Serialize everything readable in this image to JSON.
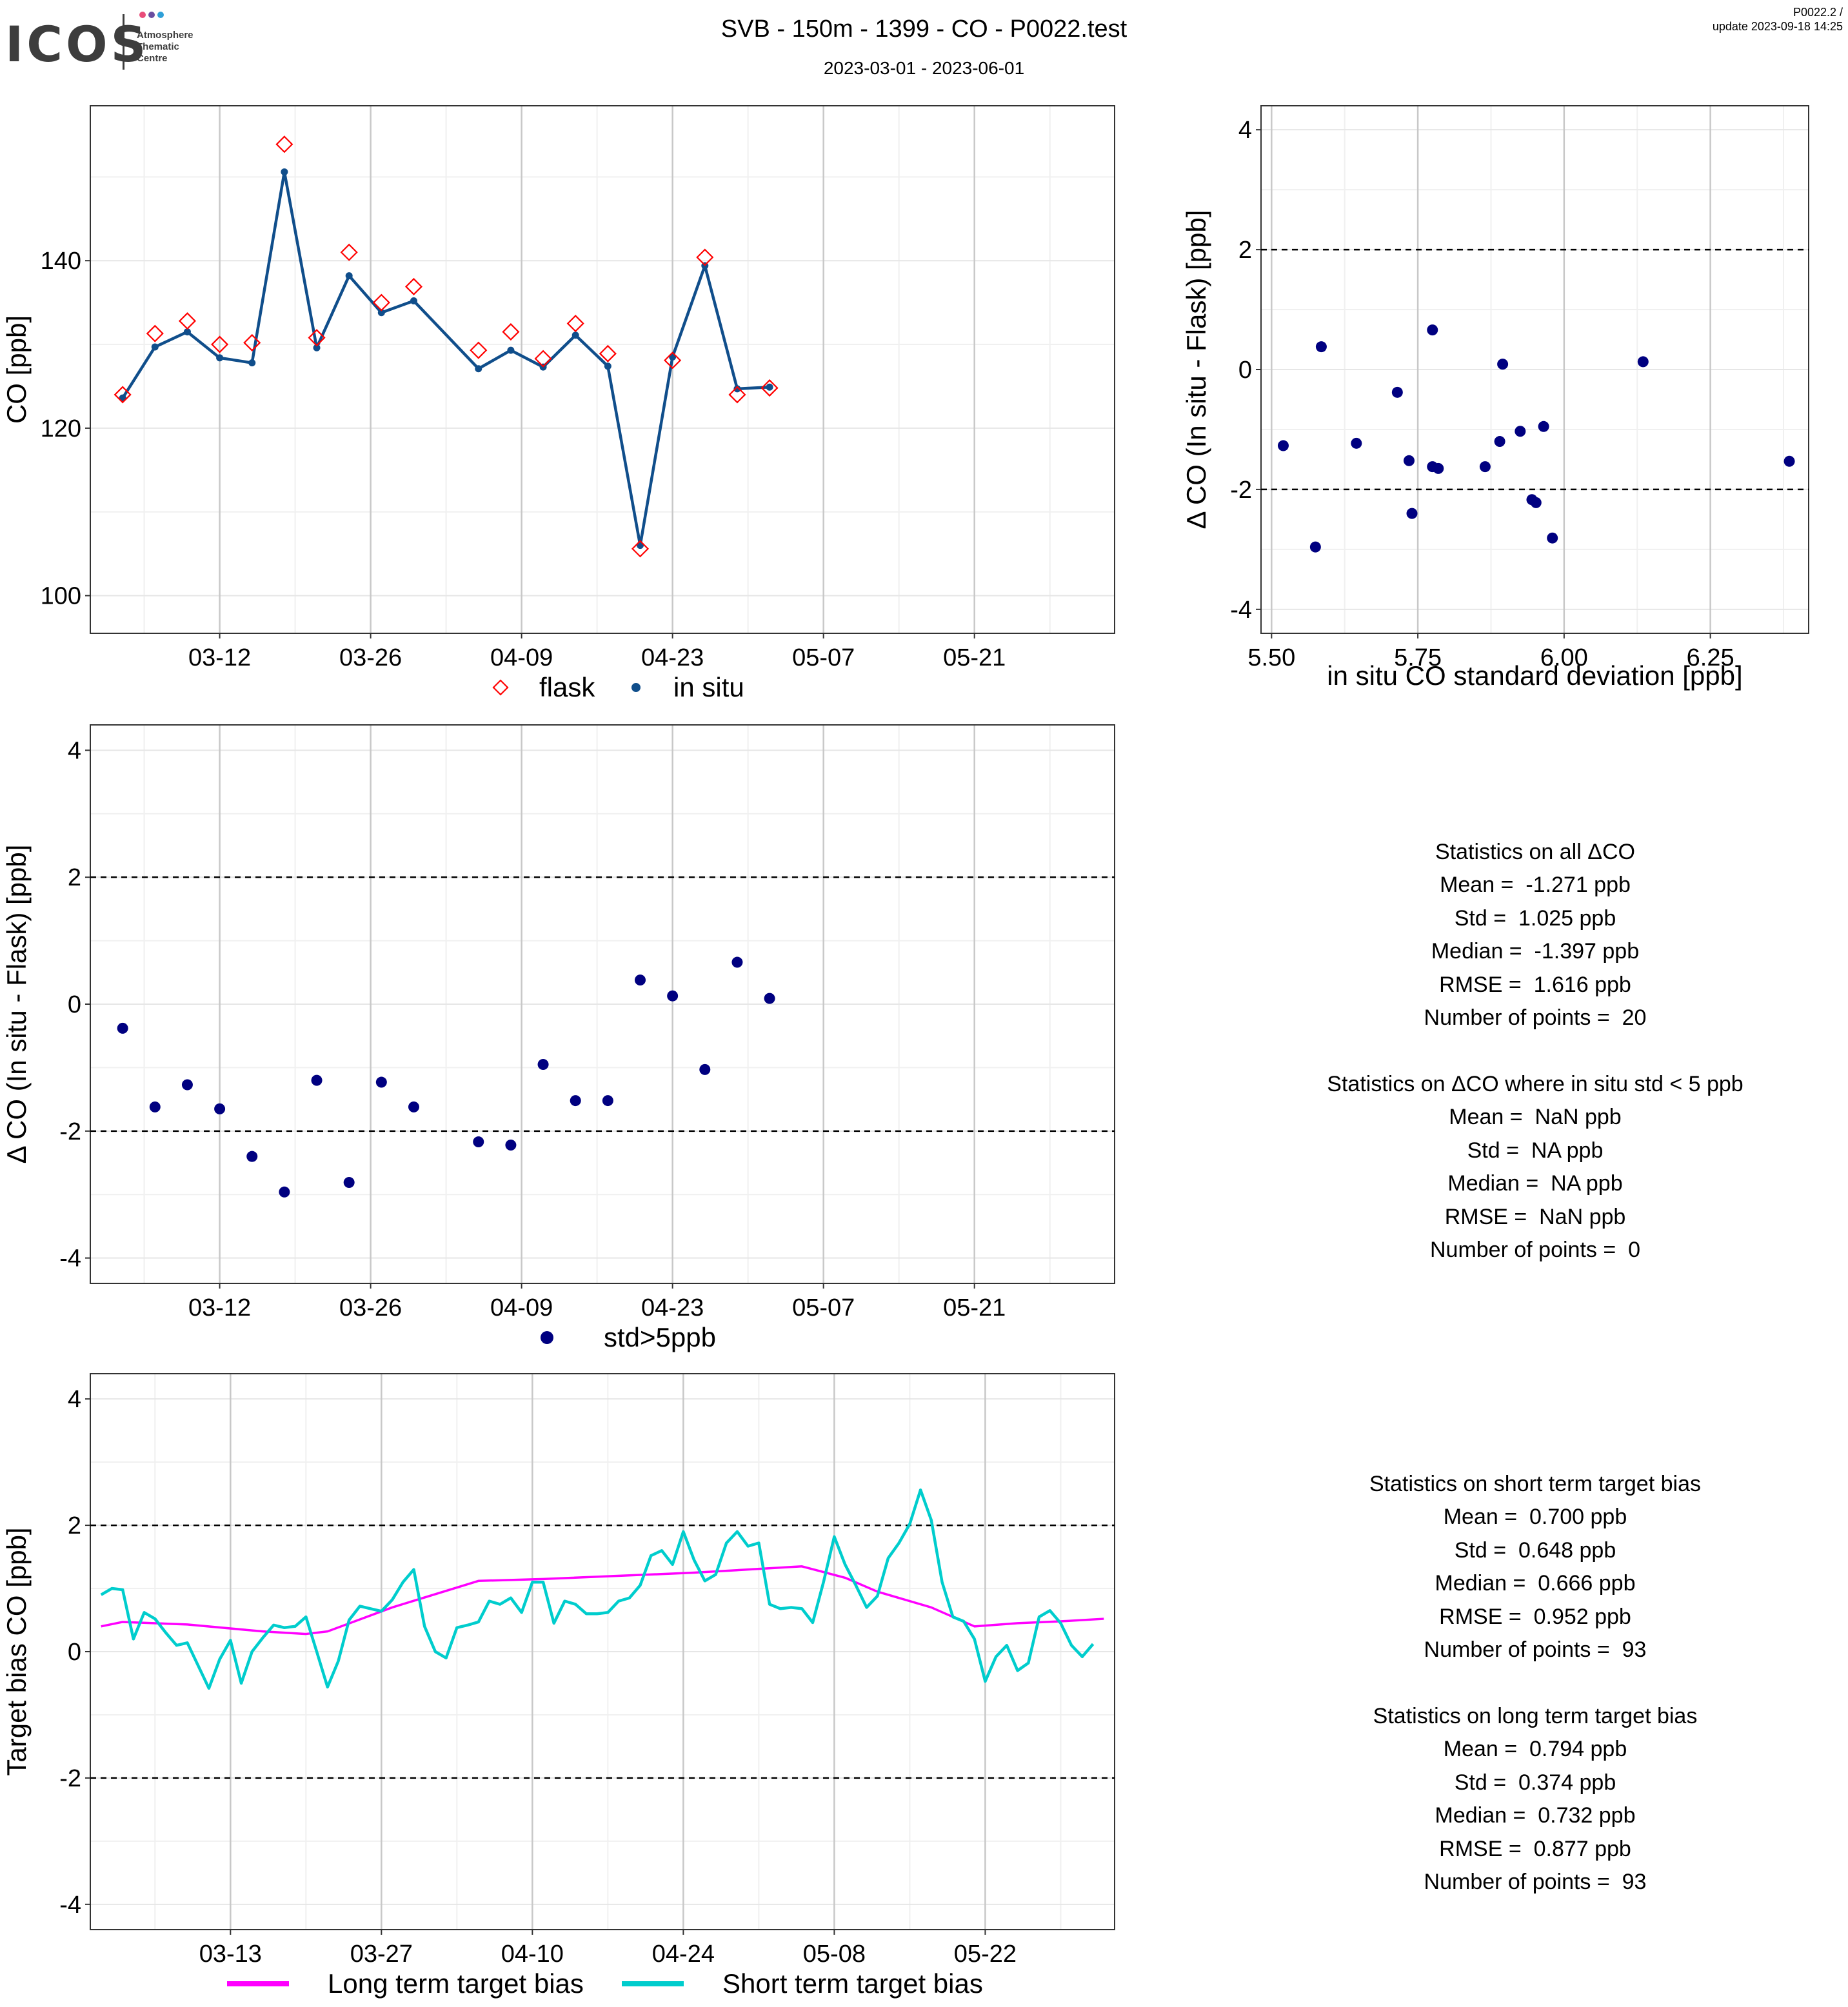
{
  "header": {
    "title": "SVB - 150m - 1399 - CO - P0022.test",
    "subtitle": "2023-03-01 - 2023-06-01",
    "version": "P0022.2 /",
    "update": "update  2023-09-18 14:25"
  },
  "logo": {
    "word": "ICOS",
    "sub": [
      "Atmosphere",
      "Thematic",
      "Centre"
    ],
    "dot_colors": [
      "#e94c7a",
      "#6a4ea0",
      "#2fa0d8"
    ]
  },
  "colors": {
    "flask": "#ff0000",
    "in_situ": "#104e8b",
    "delta": "#000080",
    "long_term": "#ff00ff",
    "short_term": "#00cdcd"
  },
  "chart_data": [
    {
      "id": "co-timeseries",
      "type": "line",
      "ylabel": "CO [ppb]",
      "ylim": [
        95.5,
        158.5
      ],
      "yticks": [
        100,
        120,
        140
      ],
      "xlim": [
        "2023-02-28",
        "2023-06-03"
      ],
      "xticks": [
        "03-12",
        "03-26",
        "04-09",
        "04-23",
        "05-07",
        "05-21"
      ],
      "xtick_dates": [
        "2023-03-12",
        "2023-03-26",
        "2023-04-09",
        "2023-04-23",
        "2023-05-07",
        "2023-05-21"
      ],
      "grid": true,
      "legend": "bottom",
      "series": [
        {
          "name": "flask",
          "marker": "diamond",
          "x": [
            "2023-03-03",
            "2023-03-06",
            "2023-03-09",
            "2023-03-12",
            "2023-03-15",
            "2023-03-18",
            "2023-03-21",
            "2023-03-24",
            "2023-03-27",
            "2023-03-30",
            "2023-04-05",
            "2023-04-08",
            "2023-04-11",
            "2023-04-14",
            "2023-04-17",
            "2023-04-20",
            "2023-04-23",
            "2023-04-26",
            "2023-04-29",
            "2023-05-02"
          ],
          "values": [
            124,
            131.3,
            132.8,
            130,
            130.2,
            153.9,
            130.8,
            141,
            135,
            136.9,
            129.3,
            131.5,
            128.3,
            132.5,
            128.9,
            105.6,
            128.1,
            140.4,
            124,
            124.8
          ]
        },
        {
          "name": "in situ",
          "marker": "point",
          "x": [
            "2023-03-03",
            "2023-03-06",
            "2023-03-09",
            "2023-03-12",
            "2023-03-15",
            "2023-03-18",
            "2023-03-21",
            "2023-03-24",
            "2023-03-27",
            "2023-03-30",
            "2023-04-05",
            "2023-04-08",
            "2023-04-11",
            "2023-04-14",
            "2023-04-17",
            "2023-04-20",
            "2023-04-23",
            "2023-04-26",
            "2023-04-29",
            "2023-05-02"
          ],
          "values": [
            123.6,
            129.7,
            131.5,
            128.4,
            127.8,
            150.6,
            129.6,
            138.2,
            133.8,
            135.2,
            127.1,
            129.3,
            127.3,
            131.1,
            127.4,
            106,
            128.5,
            139.4,
            124.7,
            124.9
          ]
        }
      ]
    },
    {
      "id": "delta-vs-std",
      "type": "scatter",
      "xlabel": "in situ CO standard deviation [ppb]",
      "ylabel": "Δ CO (In situ - Flask) [ppb]",
      "xlim": [
        5.482,
        6.418
      ],
      "ylim": [
        -4.4,
        4.4
      ],
      "xticks": [
        5.5,
        5.75,
        6.0,
        6.25
      ],
      "xtick_labels": [
        "5.50",
        "5.75",
        "6.00",
        "6.25"
      ],
      "yticks": [
        -4,
        -2,
        0,
        2,
        4
      ],
      "hlines": [
        -2,
        2
      ],
      "grid": true,
      "points": [
        {
          "x": 5.52,
          "y": -1.27
        },
        {
          "x": 5.575,
          "y": -2.96
        },
        {
          "x": 5.585,
          "y": 0.38
        },
        {
          "x": 5.645,
          "y": -1.23
        },
        {
          "x": 5.715,
          "y": -0.38
        },
        {
          "x": 5.735,
          "y": -1.52
        },
        {
          "x": 5.74,
          "y": -2.4
        },
        {
          "x": 5.775,
          "y": 0.66
        },
        {
          "x": 5.775,
          "y": -1.62
        },
        {
          "x": 5.785,
          "y": -1.65
        },
        {
          "x": 5.865,
          "y": -1.62
        },
        {
          "x": 5.89,
          "y": -1.2
        },
        {
          "x": 5.895,
          "y": 0.09
        },
        {
          "x": 5.925,
          "y": -1.03
        },
        {
          "x": 5.945,
          "y": -2.17
        },
        {
          "x": 5.952,
          "y": -2.22
        },
        {
          "x": 5.965,
          "y": -0.95
        },
        {
          "x": 5.98,
          "y": -2.81
        },
        {
          "x": 6.135,
          "y": 0.13
        },
        {
          "x": 6.385,
          "y": -1.53
        }
      ]
    },
    {
      "id": "delta-timeseries",
      "type": "scatter",
      "ylabel": "Δ CO (In situ - Flask) [ppb]",
      "xlim": [
        "2023-02-28",
        "2023-06-03"
      ],
      "ylim": [
        -4.4,
        4.4
      ],
      "yticks": [
        -4,
        -2,
        0,
        2,
        4
      ],
      "xticks": [
        "03-12",
        "03-26",
        "04-09",
        "04-23",
        "05-07",
        "05-21"
      ],
      "xtick_dates": [
        "2023-03-12",
        "2023-03-26",
        "2023-04-09",
        "2023-04-23",
        "2023-05-07",
        "2023-05-21"
      ],
      "hlines": [
        -2,
        2
      ],
      "grid": true,
      "legend": "bottom",
      "series": [
        {
          "name": "std>5ppb",
          "x": [
            "2023-03-03",
            "2023-03-06",
            "2023-03-09",
            "2023-03-12",
            "2023-03-15",
            "2023-03-18",
            "2023-03-21",
            "2023-03-24",
            "2023-03-27",
            "2023-03-30",
            "2023-04-05",
            "2023-04-08",
            "2023-04-11",
            "2023-04-14",
            "2023-04-17",
            "2023-04-20",
            "2023-04-23",
            "2023-04-26",
            "2023-04-29",
            "2023-05-02"
          ],
          "values": [
            -0.38,
            -1.62,
            -1.27,
            -1.65,
            -2.4,
            -2.96,
            -1.2,
            -2.81,
            -1.23,
            -1.62,
            -2.17,
            -2.22,
            -0.95,
            -1.52,
            -1.52,
            0.38,
            0.13,
            -1.03,
            0.66,
            0.09
          ]
        }
      ]
    },
    {
      "id": "target-bias",
      "type": "line",
      "ylabel": "Target bias CO [ppb]",
      "ylim": [
        -4.4,
        4.4
      ],
      "yticks": [
        -4,
        -2,
        0,
        2,
        4
      ],
      "xlim": [
        "2023-02-28",
        "2023-06-03"
      ],
      "xticks": [
        "03-13",
        "03-27",
        "04-10",
        "04-24",
        "05-08",
        "05-22"
      ],
      "xtick_dates": [
        "2023-03-13",
        "2023-03-27",
        "2023-04-10",
        "2023-04-24",
        "2023-05-08",
        "2023-05-22"
      ],
      "hlines": [
        -2,
        2
      ],
      "grid": true,
      "legend": "bottom",
      "series": [
        {
          "name": "Long term target bias",
          "x": [
            "2023-03-01",
            "2023-03-03",
            "2023-03-09",
            "2023-03-16",
            "2023-03-20",
            "2023-03-22",
            "2023-03-28",
            "2023-04-05",
            "2023-04-11",
            "2023-04-25",
            "2023-05-05",
            "2023-05-09",
            "2023-05-12",
            "2023-05-17",
            "2023-05-21",
            "2023-05-25",
            "2023-05-29",
            "2023-06-02"
          ],
          "values": [
            0.4,
            0.47,
            0.43,
            0.32,
            0.28,
            0.32,
            0.7,
            1.12,
            1.15,
            1.25,
            1.35,
            1.17,
            0.95,
            0.7,
            0.4,
            0.45,
            0.48,
            0.52
          ]
        },
        {
          "name": "Short term target bias",
          "x": [
            "2023-03-01",
            "2023-03-02",
            "2023-03-03",
            "2023-03-04",
            "2023-03-05",
            "2023-03-06",
            "2023-03-07",
            "2023-03-08",
            "2023-03-09",
            "2023-03-10",
            "2023-03-11",
            "2023-03-12",
            "2023-03-13",
            "2023-03-14",
            "2023-03-15",
            "2023-03-16",
            "2023-03-17",
            "2023-03-18",
            "2023-03-19",
            "2023-03-20",
            "2023-03-21",
            "2023-03-22",
            "2023-03-23",
            "2023-03-24",
            "2023-03-25",
            "2023-03-26",
            "2023-03-27",
            "2023-03-28",
            "2023-03-29",
            "2023-03-30",
            "2023-03-31",
            "2023-04-01",
            "2023-04-02",
            "2023-04-03",
            "2023-04-04",
            "2023-04-05",
            "2023-04-06",
            "2023-04-07",
            "2023-04-08",
            "2023-04-09",
            "2023-04-10",
            "2023-04-11",
            "2023-04-12",
            "2023-04-13",
            "2023-04-14",
            "2023-04-15",
            "2023-04-16",
            "2023-04-17",
            "2023-04-18",
            "2023-04-19",
            "2023-04-20",
            "2023-04-21",
            "2023-04-22",
            "2023-04-23",
            "2023-04-24",
            "2023-04-25",
            "2023-04-26",
            "2023-04-27",
            "2023-04-28",
            "2023-04-29",
            "2023-04-30",
            "2023-05-01",
            "2023-05-02",
            "2023-05-03",
            "2023-05-04",
            "2023-05-05",
            "2023-05-06",
            "2023-05-07",
            "2023-05-08",
            "2023-05-09",
            "2023-05-10",
            "2023-05-11",
            "2023-05-12",
            "2023-05-13",
            "2023-05-14",
            "2023-05-15",
            "2023-05-16",
            "2023-05-17",
            "2023-05-18",
            "2023-05-19",
            "2023-05-20",
            "2023-05-21",
            "2023-05-22",
            "2023-05-23",
            "2023-05-24",
            "2023-05-25",
            "2023-05-26",
            "2023-05-27",
            "2023-05-28",
            "2023-05-29",
            "2023-05-30",
            "2023-05-31",
            "2023-06-01"
          ],
          "values": [
            0.9,
            1.0,
            0.98,
            0.2,
            0.62,
            0.52,
            0.3,
            0.1,
            0.14,
            -0.22,
            -0.58,
            -0.12,
            0.18,
            -0.5,
            0.0,
            0.22,
            0.42,
            0.38,
            0.4,
            0.55,
            0.0,
            -0.56,
            -0.15,
            0.5,
            0.72,
            0.68,
            0.64,
            0.82,
            1.1,
            1.3,
            0.4,
            0.0,
            -0.1,
            0.38,
            0.42,
            0.47,
            0.8,
            0.75,
            0.85,
            0.62,
            1.1,
            1.1,
            0.45,
            0.8,
            0.75,
            0.6,
            0.6,
            0.62,
            0.8,
            0.85,
            1.05,
            1.52,
            1.6,
            1.38,
            1.9,
            1.45,
            1.12,
            1.22,
            1.72,
            1.9,
            1.67,
            1.72,
            0.75,
            0.68,
            0.7,
            0.68,
            0.46,
            1.1,
            1.82,
            1.38,
            1.05,
            0.7,
            0.88,
            1.48,
            1.72,
            2.02,
            2.56,
            2.08,
            1.1,
            0.55,
            0.48,
            0.2,
            -0.47,
            -0.08,
            0.1,
            -0.3,
            -0.18,
            0.55,
            0.65,
            0.45,
            0.1,
            -0.08,
            0.12
          ]
        }
      ]
    }
  ],
  "stats": {
    "all": {
      "title": "Statistics on all ΔCO",
      "mean": "Mean =  -1.271 ppb",
      "std": "Std =  1.025 ppb",
      "median": "Median =  -1.397 ppb",
      "rmse": "RMSE =  1.616 ppb",
      "n": "Number of points =  20"
    },
    "filtered": {
      "title": "Statistics on ΔCO where in situ std < 5 ppb",
      "mean": "Mean =  NaN ppb",
      "std": "Std =  NA ppb",
      "median": "Median =  NA ppb",
      "rmse": "RMSE =  NaN ppb",
      "n": "Number of points =  0"
    },
    "short_term": {
      "title": "Statistics on short term target bias",
      "mean": "Mean =  0.700 ppb",
      "std": "Std =  0.648 ppb",
      "median": "Median =  0.666 ppb",
      "rmse": "RMSE =  0.952 ppb",
      "n": "Number of points =  93"
    },
    "long_term": {
      "title": "Statistics on long term target bias",
      "mean": "Mean =  0.794 ppb",
      "std": "Std =  0.374 ppb",
      "median": "Median =  0.732 ppb",
      "rmse": "RMSE =  0.877 ppb",
      "n": "Number of points =  93"
    }
  }
}
